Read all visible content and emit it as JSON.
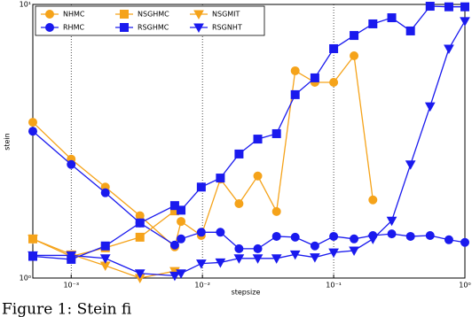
{
  "chart_data": {
    "type": "line",
    "xlabel": "stepsize",
    "ylabel": "stein",
    "xscale": "log",
    "yscale": "log",
    "xlim": [
      0.00051,
      1
    ],
    "ylim": [
      1,
      10
    ],
    "xticks": [
      {
        "value": 0.001,
        "label": "10⁻³"
      },
      {
        "value": 0.01,
        "label": "10⁻²"
      },
      {
        "value": 0.1,
        "label": "10⁻¹"
      },
      {
        "value": 1,
        "label": "10⁰"
      }
    ],
    "yticks": [
      {
        "value": 1,
        "label": "10⁰"
      },
      {
        "value": 10,
        "label": "10¹"
      }
    ],
    "grid": true,
    "legend": "upper left",
    "x": [
      0.00051,
      0.001,
      0.00182,
      0.00334,
      0.00615,
      0.00687,
      0.0098,
      0.0137,
      0.019,
      0.0264,
      0.0367,
      0.0509,
      0.0719,
      0.1,
      0.143,
      0.199,
      0.277,
      0.385,
      0.543,
      0.755,
      1
    ],
    "series": [
      {
        "name": "NHMC",
        "color": "#f5a31a",
        "marker": "circle",
        "values": [
          3.71,
          2.72,
          2.15,
          1.69,
          1.3,
          1.61,
          1.43,
          2.3,
          1.87,
          2.36,
          1.75,
          5.72,
          5.19,
          5.19,
          6.49,
          1.93,
          null,
          null,
          null,
          null,
          null
        ]
      },
      {
        "name": "RHMC",
        "color": "#1a1aee",
        "marker": "circle",
        "values": [
          3.44,
          2.6,
          2.05,
          1.59,
          1.32,
          1.39,
          1.47,
          1.47,
          1.28,
          1.28,
          1.42,
          1.41,
          1.31,
          1.42,
          1.39,
          1.43,
          1.45,
          1.42,
          1.43,
          1.38,
          1.35
        ]
      },
      {
        "name": "NSGHMC",
        "color": "#f5a31a",
        "marker": "square",
        "values": [
          1.39,
          1.2,
          1.29,
          1.41,
          1.76,
          null,
          null,
          null,
          null,
          null,
          null,
          null,
          null,
          null,
          null,
          null,
          null,
          null,
          null,
          null,
          null
        ]
      },
      {
        "name": "RSGHMC",
        "color": "#1a1aee",
        "marker": "square",
        "values": [
          1.2,
          1.17,
          1.31,
          1.59,
          1.84,
          1.77,
          2.15,
          2.32,
          2.84,
          3.22,
          3.37,
          4.68,
          5.39,
          6.89,
          7.7,
          8.49,
          8.94,
          8.0,
          9.85,
          9.8,
          9.8
        ]
      },
      {
        "name": "NSGMIT",
        "color": "#f5a31a",
        "marker": "triangle",
        "values": [
          1.39,
          1.22,
          1.11,
          1.0,
          1.06,
          null,
          null,
          null,
          null,
          null,
          null,
          null,
          null,
          null,
          null,
          null,
          null,
          null,
          null,
          null,
          null
        ]
      },
      {
        "name": "RSGNHT",
        "color": "#1a1aee",
        "marker": "triangle",
        "values": [
          1.21,
          1.21,
          1.18,
          1.04,
          1.02,
          1.04,
          1.13,
          1.14,
          1.18,
          1.18,
          1.18,
          1.22,
          1.19,
          1.24,
          1.26,
          1.39,
          1.62,
          2.6,
          4.24,
          6.89,
          8.69
        ]
      }
    ],
    "caption": "Figure 1: Stein fi"
  }
}
